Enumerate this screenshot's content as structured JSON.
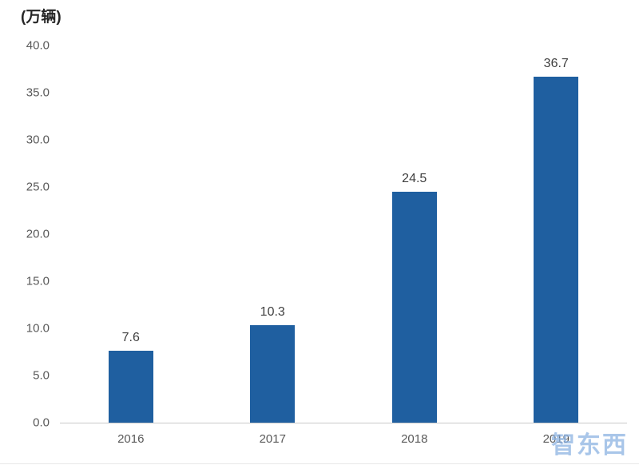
{
  "chart_data": {
    "type": "bar",
    "title": "(万辆)",
    "categories": [
      "2016",
      "2017",
      "2018",
      "2019"
    ],
    "values": [
      7.6,
      10.3,
      24.5,
      36.7
    ],
    "value_labels": [
      "7.6",
      "10.3",
      "24.5",
      "36.7"
    ],
    "xlabel": "",
    "ylabel": "",
    "ylim": [
      0,
      40
    ],
    "yticks": [
      "0.0",
      "5.0",
      "10.0",
      "15.0",
      "20.0",
      "25.0",
      "30.0",
      "35.0",
      "40.0"
    ],
    "grid": "off",
    "legend": "none",
    "bar_color": "#1f5fa0",
    "axis_text_color": "#595959",
    "value_text_color": "#404040"
  },
  "watermark": {
    "text": "智东西",
    "color": "#8db3e2"
  }
}
